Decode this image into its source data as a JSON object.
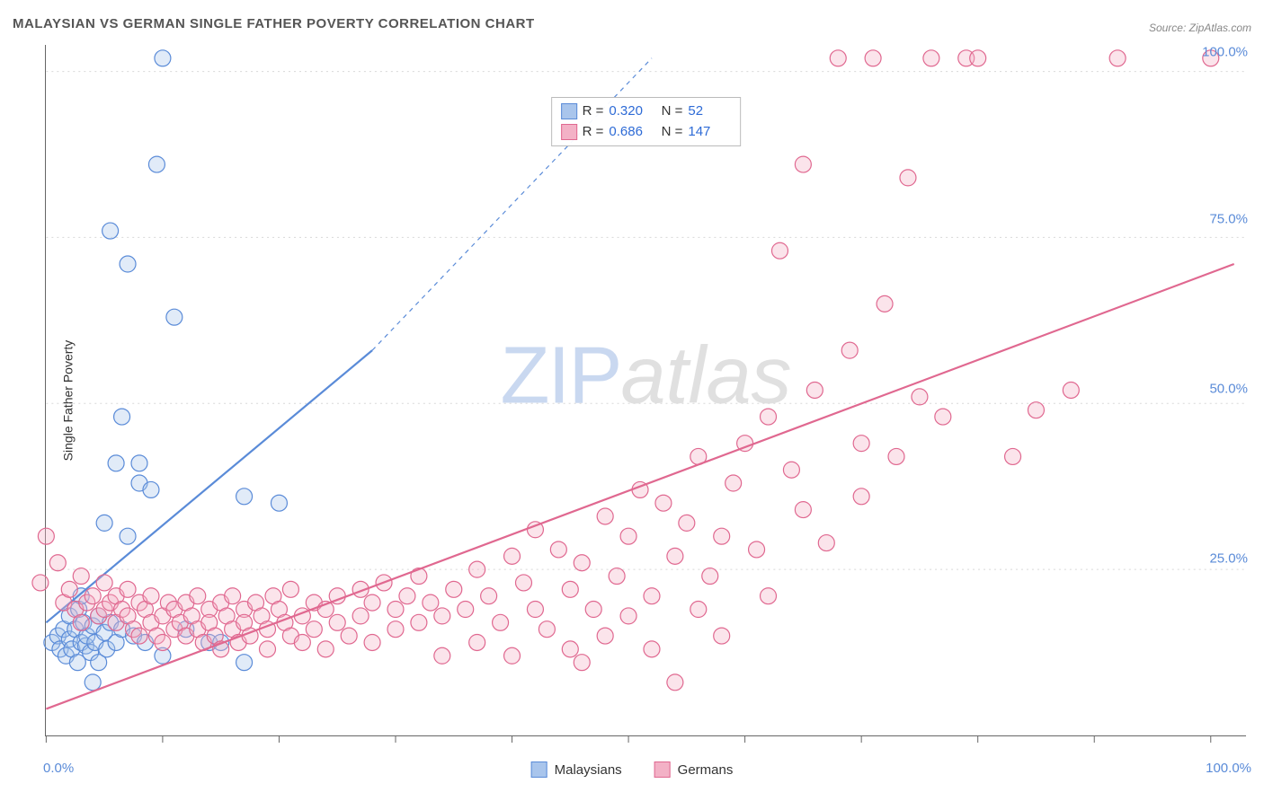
{
  "title": "MALAYSIAN VS GERMAN SINGLE FATHER POVERTY CORRELATION CHART",
  "source": "Source: ZipAtlas.com",
  "y_axis_label": "Single Father Poverty",
  "watermark": {
    "part1": "ZIP",
    "part2": "atlas"
  },
  "chart": {
    "type": "scatter",
    "background_color": "#ffffff",
    "grid_color": "#d8d8d8",
    "axis_color": "#666666",
    "value_color": "#2e6bd6",
    "xlim": [
      0,
      103
    ],
    "ylim": [
      0,
      104
    ],
    "x_ticks": [
      0,
      10,
      20,
      30,
      40,
      50,
      60,
      70,
      80,
      90,
      100
    ],
    "y_gridlines": [
      25,
      50,
      75,
      100
    ],
    "y_grid_labels": [
      "25.0%",
      "50.0%",
      "75.0%",
      "100.0%"
    ],
    "x_origin_label": "0.0%",
    "x_max_label": "100.0%",
    "marker_radius": 9,
    "marker_stroke_width": 1.2,
    "marker_fill_opacity": 0.35,
    "trend_line_width": 2.2,
    "series": [
      {
        "name": "Malaysians",
        "stroke": "#5a8bd8",
        "fill": "#a9c5ec",
        "R": "0.320",
        "N": "52",
        "trend": {
          "x1": 0,
          "y1": 17,
          "x2": 28,
          "y2": 58,
          "dashed_to": {
            "x": 52,
            "y": 102
          }
        },
        "points": [
          [
            0.5,
            14
          ],
          [
            1,
            15
          ],
          [
            1.2,
            13
          ],
          [
            1.5,
            16
          ],
          [
            1.7,
            12
          ],
          [
            2,
            14.5
          ],
          [
            2,
            18
          ],
          [
            2.2,
            13
          ],
          [
            2.5,
            16
          ],
          [
            2.7,
            11
          ],
          [
            2.8,
            19
          ],
          [
            3,
            14
          ],
          [
            3,
            21
          ],
          [
            3.2,
            17
          ],
          [
            3.4,
            13.5
          ],
          [
            3.5,
            15
          ],
          [
            3.8,
            12.5
          ],
          [
            4,
            16.5
          ],
          [
            4,
            8
          ],
          [
            4.2,
            14
          ],
          [
            4.5,
            18
          ],
          [
            4.5,
            11
          ],
          [
            5,
            15.5
          ],
          [
            5,
            32
          ],
          [
            5.2,
            13
          ],
          [
            5.5,
            17
          ],
          [
            5.5,
            76
          ],
          [
            6,
            14
          ],
          [
            6,
            41
          ],
          [
            6.5,
            16
          ],
          [
            6.5,
            48
          ],
          [
            7,
            30
          ],
          [
            7,
            71
          ],
          [
            7.5,
            15
          ],
          [
            8,
            38
          ],
          [
            8,
            41
          ],
          [
            8.5,
            14
          ],
          [
            9,
            37
          ],
          [
            9.5,
            86
          ],
          [
            10,
            12
          ],
          [
            10,
            102
          ],
          [
            11,
            63
          ],
          [
            12,
            16
          ],
          [
            14,
            14
          ],
          [
            15,
            14
          ],
          [
            17,
            11
          ],
          [
            17,
            36
          ],
          [
            20,
            35
          ]
        ]
      },
      {
        "name": "Germans",
        "stroke": "#e06890",
        "fill": "#f3b1c6",
        "R": "0.686",
        "N": "147",
        "trend": {
          "x1": 0,
          "y1": 4,
          "x2": 102,
          "y2": 71
        },
        "points": [
          [
            -0.5,
            23
          ],
          [
            0,
            30
          ],
          [
            1,
            26
          ],
          [
            1.5,
            20
          ],
          [
            2,
            22
          ],
          [
            2.5,
            19
          ],
          [
            3,
            17
          ],
          [
            3,
            24
          ],
          [
            3.5,
            20
          ],
          [
            4,
            21
          ],
          [
            4.5,
            18
          ],
          [
            5,
            19
          ],
          [
            5,
            23
          ],
          [
            5.5,
            20
          ],
          [
            6,
            17
          ],
          [
            6,
            21
          ],
          [
            6.5,
            19
          ],
          [
            7,
            18
          ],
          [
            7,
            22
          ],
          [
            7.5,
            16
          ],
          [
            8,
            20
          ],
          [
            8,
            15
          ],
          [
            8.5,
            19
          ],
          [
            9,
            17
          ],
          [
            9,
            21
          ],
          [
            9.5,
            15
          ],
          [
            10,
            18
          ],
          [
            10,
            14
          ],
          [
            10.5,
            20
          ],
          [
            11,
            16
          ],
          [
            11,
            19
          ],
          [
            11.5,
            17
          ],
          [
            12,
            15
          ],
          [
            12,
            20
          ],
          [
            12.5,
            18
          ],
          [
            13,
            16
          ],
          [
            13,
            21
          ],
          [
            13.5,
            14
          ],
          [
            14,
            19
          ],
          [
            14,
            17
          ],
          [
            14.5,
            15
          ],
          [
            15,
            20
          ],
          [
            15,
            13
          ],
          [
            15.5,
            18
          ],
          [
            16,
            16
          ],
          [
            16,
            21
          ],
          [
            16.5,
            14
          ],
          [
            17,
            19
          ],
          [
            17,
            17
          ],
          [
            17.5,
            15
          ],
          [
            18,
            20
          ],
          [
            18.5,
            18
          ],
          [
            19,
            16
          ],
          [
            19,
            13
          ],
          [
            19.5,
            21
          ],
          [
            20,
            19
          ],
          [
            20.5,
            17
          ],
          [
            21,
            15
          ],
          [
            21,
            22
          ],
          [
            22,
            18
          ],
          [
            22,
            14
          ],
          [
            23,
            20
          ],
          [
            23,
            16
          ],
          [
            24,
            19
          ],
          [
            24,
            13
          ],
          [
            25,
            21
          ],
          [
            25,
            17
          ],
          [
            26,
            15
          ],
          [
            27,
            22
          ],
          [
            27,
            18
          ],
          [
            28,
            20
          ],
          [
            28,
            14
          ],
          [
            29,
            23
          ],
          [
            30,
            19
          ],
          [
            30,
            16
          ],
          [
            31,
            21
          ],
          [
            32,
            17
          ],
          [
            32,
            24
          ],
          [
            33,
            20
          ],
          [
            34,
            18
          ],
          [
            34,
            12
          ],
          [
            35,
            22
          ],
          [
            36,
            19
          ],
          [
            37,
            25
          ],
          [
            37,
            14
          ],
          [
            38,
            21
          ],
          [
            39,
            17
          ],
          [
            40,
            27
          ],
          [
            40,
            12
          ],
          [
            41,
            23
          ],
          [
            42,
            19
          ],
          [
            42,
            31
          ],
          [
            43,
            16
          ],
          [
            44,
            28
          ],
          [
            45,
            13
          ],
          [
            45,
            22
          ],
          [
            46,
            26
          ],
          [
            46,
            11
          ],
          [
            47,
            19
          ],
          [
            48,
            33
          ],
          [
            48,
            15
          ],
          [
            49,
            24
          ],
          [
            50,
            30
          ],
          [
            50,
            18
          ],
          [
            51,
            37
          ],
          [
            52,
            21
          ],
          [
            52,
            13
          ],
          [
            53,
            35
          ],
          [
            54,
            27
          ],
          [
            54,
            8
          ],
          [
            55,
            32
          ],
          [
            56,
            19
          ],
          [
            56,
            42
          ],
          [
            57,
            24
          ],
          [
            58,
            30
          ],
          [
            58,
            15
          ],
          [
            59,
            38
          ],
          [
            60,
            44
          ],
          [
            61,
            28
          ],
          [
            62,
            48
          ],
          [
            62,
            21
          ],
          [
            63,
            73
          ],
          [
            64,
            40
          ],
          [
            65,
            34
          ],
          [
            65,
            86
          ],
          [
            66,
            52
          ],
          [
            67,
            29
          ],
          [
            68,
            102
          ],
          [
            69,
            58
          ],
          [
            70,
            44
          ],
          [
            70,
            36
          ],
          [
            71,
            102
          ],
          [
            72,
            65
          ],
          [
            73,
            42
          ],
          [
            74,
            84
          ],
          [
            75,
            51
          ],
          [
            76,
            102
          ],
          [
            77,
            48
          ],
          [
            79,
            102
          ],
          [
            80,
            102
          ],
          [
            83,
            42
          ],
          [
            85,
            49
          ],
          [
            88,
            52
          ],
          [
            92,
            102
          ],
          [
            100,
            102
          ]
        ]
      }
    ],
    "legend": {
      "items": [
        {
          "label": "Malaysians",
          "stroke": "#5a8bd8",
          "fill": "#a9c5ec"
        },
        {
          "label": "Germans",
          "stroke": "#e06890",
          "fill": "#f3b1c6"
        }
      ]
    }
  }
}
